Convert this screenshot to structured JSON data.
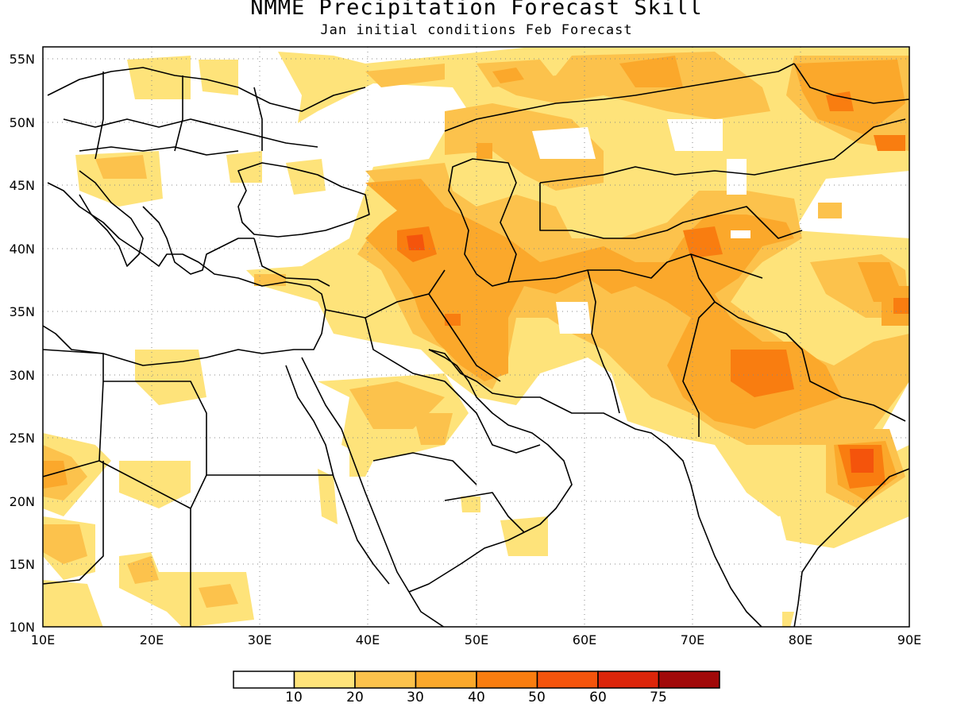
{
  "title": "NMME Precipitation Forecast Skill",
  "subtitle": "Jan initial conditions  Feb Forecast",
  "lat_labels": [
    "55N",
    "50N",
    "45N",
    "40N",
    "35N",
    "30N",
    "25N",
    "20N",
    "15N",
    "10N"
  ],
  "lon_labels": [
    "10E",
    "20E",
    "30E",
    "40E",
    "50E",
    "60E",
    "70E",
    "80E",
    "90E"
  ],
  "map_extent": {
    "lon_min": 10,
    "lon_max": 90,
    "lat_min": 10,
    "lat_max": 56
  },
  "colorbar": {
    "labels": [
      "10",
      "20",
      "30",
      "40",
      "50",
      "60",
      "75"
    ],
    "colors": [
      "#ffffff",
      "#fee37a",
      "#fcc24c",
      "#fba82b",
      "#f97d10",
      "#f4540c",
      "#dc250a",
      "#a10909"
    ]
  }
}
